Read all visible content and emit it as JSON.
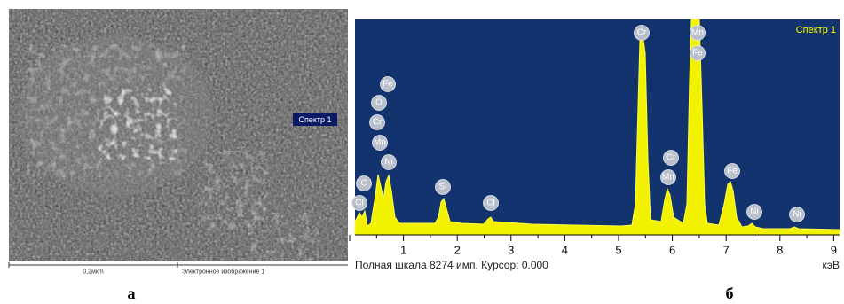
{
  "sem_image": {
    "marker_label": "Спектр 1",
    "scale_label": "0,2мкm",
    "caption": "Электронное изображение 1"
  },
  "spectrum": {
    "title": "Спектр 1",
    "x_ticks": [
      "1",
      "2",
      "3",
      "4",
      "5",
      "6",
      "7",
      "8",
      "9"
    ],
    "footer": "Полная шкала 8274 имп. Курсор: 0.000",
    "unit": "кэВ",
    "peaks": [
      "Cl",
      "C",
      "Mn",
      "Ni",
      "Cr",
      "O",
      "Fe",
      "Si",
      "Cl",
      "Cr",
      "Mn",
      "Fe",
      "Cr",
      "Mn",
      "Fe",
      "Ni",
      "Ni"
    ]
  },
  "panel_labels": [
    "а",
    "б"
  ]
}
